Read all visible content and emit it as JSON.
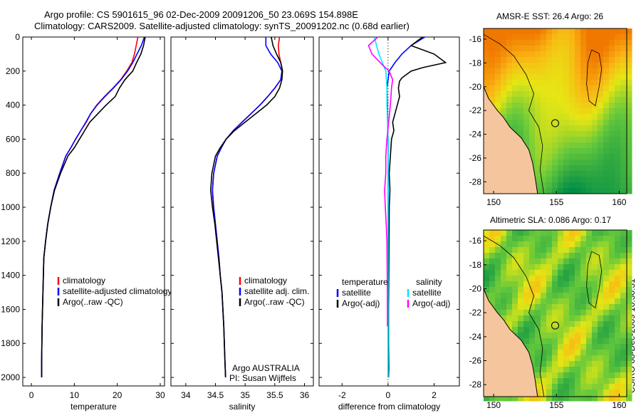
{
  "header": {
    "line1": "Argo profile: CS 5901615_96 02-Dec-2009 20091206_50 23.069S 154.898E",
    "line2": "Climatology: CARS2009. Satellite-adjusted climatology: synTS_20091202.nc (0.68d earlier)"
  },
  "footer_stamp": "CSIRO 08-Dec-2009 10:30:31",
  "colors": {
    "climatology": "#ff0000",
    "satellite": "#0000ff",
    "argo": "#000000",
    "cyan": "#00e5ff",
    "magenta": "#ff00ff"
  },
  "chart_data": [
    {
      "id": "temperature",
      "type": "line",
      "xlabel": "temperature",
      "ylabel": "",
      "xlim": [
        -2,
        31
      ],
      "ylim": [
        2050,
        0
      ],
      "xticks": [
        0,
        10,
        20,
        30
      ],
      "yticks": [
        0,
        200,
        400,
        600,
        800,
        1000,
        1200,
        1400,
        1600,
        1800,
        2000
      ],
      "series": [
        {
          "name": "climatology",
          "color": "#ff0000",
          "x": [
            24.8,
            24.4,
            24,
            23.4,
            22.2,
            20.8,
            19,
            17,
            15.2,
            13.8,
            12.8,
            11.5,
            10.3,
            9.2,
            8,
            6.6,
            5.3,
            4.5,
            3.8,
            3.3,
            2.9,
            2.7,
            2.5,
            2.4,
            2.4
          ],
          "y": [
            0,
            50,
            100,
            150,
            200,
            250,
            300,
            350,
            400,
            450,
            500,
            550,
            600,
            650,
            700,
            800,
            900,
            1000,
            1100,
            1200,
            1300,
            1500,
            1700,
            1900,
            2000
          ]
        },
        {
          "name": "satellite-adjusted climatology",
          "color": "#0000ff",
          "x": [
            26.3,
            25.6,
            24.6,
            23.6,
            22.4,
            20.9,
            19.1,
            17.1,
            15.3,
            13.8,
            12.7,
            11.5,
            10.3,
            9.2,
            8,
            6.6,
            5.3,
            4.5,
            3.8,
            3.3,
            2.9,
            2.7,
            2.5,
            2.4,
            2.4
          ],
          "y": [
            0,
            50,
            100,
            150,
            200,
            250,
            300,
            350,
            400,
            450,
            500,
            550,
            600,
            650,
            700,
            800,
            900,
            1000,
            1100,
            1200,
            1300,
            1500,
            1700,
            1900,
            2000
          ]
        },
        {
          "name": "Argo(..raw -QC)",
          "color": "#000000",
          "x": [
            26.5,
            26.1,
            25.5,
            24.5,
            23.6,
            21.8,
            20.5,
            19.5,
            17.4,
            15.5,
            13.6,
            12.4,
            11.2,
            10,
            8.5,
            6.8,
            5.4,
            4.5,
            3.8,
            3.3,
            2.9,
            2.7,
            2.5,
            2.4,
            2.4
          ],
          "y": [
            0,
            50,
            100,
            150,
            200,
            250,
            300,
            350,
            400,
            450,
            500,
            550,
            600,
            650,
            700,
            800,
            900,
            1000,
            1100,
            1200,
            1300,
            1500,
            1700,
            1900,
            2000
          ]
        }
      ],
      "legend": [
        "climatology",
        "satellite-adjusted climatology",
        "Argo(..raw -QC)"
      ]
    },
    {
      "id": "salinity",
      "type": "line",
      "xlabel": "salinity",
      "ylabel": "",
      "xlim": [
        33.75,
        36.15
      ],
      "ylim": [
        2050,
        0
      ],
      "xticks": [
        34,
        34.5,
        35,
        35.5,
        36
      ],
      "yticks": [
        0,
        200,
        400,
        600,
        800,
        1000,
        1200,
        1400,
        1600,
        1800,
        2000
      ],
      "series": [
        {
          "name": "climatology",
          "color": "#ff0000",
          "x": [
            35.58,
            35.56,
            35.57,
            35.6,
            35.63,
            35.6,
            35.5,
            35.38,
            35.25,
            35.1,
            34.95,
            34.8,
            34.68,
            34.6,
            34.53,
            34.47,
            34.45,
            34.47,
            34.5,
            34.53,
            34.56,
            34.58,
            34.61,
            34.64,
            34.66,
            34.67
          ],
          "y": [
            0,
            50,
            100,
            150,
            200,
            250,
            300,
            350,
            400,
            450,
            500,
            550,
            600,
            650,
            700,
            800,
            900,
            1000,
            1100,
            1200,
            1300,
            1400,
            1500,
            1700,
            1900,
            2000
          ]
        },
        {
          "name": "satellite adj. clim.",
          "color": "#0000ff",
          "x": [
            35.35,
            35.35,
            35.43,
            35.55,
            35.62,
            35.6,
            35.5,
            35.38,
            35.25,
            35.1,
            34.95,
            34.8,
            34.68,
            34.6,
            34.53,
            34.47,
            34.45,
            34.47,
            34.5,
            34.53,
            34.56,
            34.58,
            34.61,
            34.64,
            34.66,
            34.67
          ],
          "y": [
            0,
            50,
            100,
            150,
            200,
            250,
            300,
            350,
            400,
            450,
            500,
            550,
            600,
            650,
            700,
            800,
            900,
            1000,
            1100,
            1200,
            1300,
            1400,
            1500,
            1700,
            1900,
            2000
          ]
        },
        {
          "name": "Argo(..raw -QC)",
          "color": "#000000",
          "x": [
            35.44,
            35.47,
            35.53,
            35.6,
            35.63,
            35.62,
            35.58,
            35.5,
            35.36,
            35.18,
            35.0,
            34.82,
            34.68,
            34.58,
            34.5,
            34.44,
            34.42,
            34.45,
            34.49,
            34.52,
            34.55,
            34.58,
            34.61,
            34.64,
            34.66,
            34.67
          ],
          "y": [
            0,
            50,
            100,
            150,
            200,
            250,
            300,
            350,
            400,
            450,
            500,
            550,
            600,
            650,
            700,
            800,
            900,
            1000,
            1100,
            1200,
            1300,
            1400,
            1500,
            1700,
            1900,
            2000
          ]
        }
      ],
      "legend": [
        "climatology",
        "satellite adj. clim.",
        "Argo(..raw -QC)"
      ],
      "annotation_line1": "Argo AUSTRALIA",
      "annotation_line2": "PI: Susan Wijffels"
    },
    {
      "id": "difference",
      "type": "line",
      "xlabel": "difference from climatology",
      "ylabel": "",
      "xlim": [
        -3,
        3.1
      ],
      "ylim": [
        2050,
        0
      ],
      "xticks": [
        -2,
        0,
        2
      ],
      "yticks": [
        0,
        200,
        400,
        600,
        800,
        1000,
        1200,
        1400,
        1600,
        1800,
        2000
      ],
      "zero_line": true,
      "series": [
        {
          "name": "temperature satellite",
          "color": "#0000ff",
          "x": [
            1.6,
            1.0,
            0.6,
            0.3,
            0.05,
            -0.05,
            -0.03,
            -0.02,
            0.0,
            0.0,
            0.0,
            0.0
          ],
          "y": [
            0,
            50,
            100,
            150,
            200,
            300,
            400,
            500,
            600,
            1000,
            1500,
            2000
          ]
        },
        {
          "name": "temperature Argo(-adj)",
          "color": "#000000",
          "x": [
            1.5,
            1.0,
            2.0,
            2.5,
            1.5,
            1.0,
            0.8,
            0.6,
            0.5,
            0.45,
            0.5,
            0.4,
            0.3,
            0.2,
            0.25,
            0.15,
            0.1,
            0.05,
            0.08,
            0.05,
            0.04,
            0.03,
            0.02,
            0.02,
            0.03,
            0.02
          ],
          "y": [
            0,
            50,
            100,
            150,
            180,
            200,
            220,
            240,
            260,
            300,
            350,
            400,
            450,
            500,
            550,
            600,
            700,
            800,
            900,
            1000,
            1200,
            1400,
            1600,
            1800,
            1950,
            2000
          ]
        },
        {
          "name": "salinity satellite",
          "color": "#00e5ff",
          "x": [
            -0.6,
            -0.4,
            -0.1,
            -0.05,
            -0.05,
            -0.02,
            0.0,
            0.0,
            0.0,
            0.0
          ],
          "y": [
            0,
            100,
            200,
            300,
            400,
            500,
            600,
            1000,
            1500,
            2000
          ]
        },
        {
          "name": "salinity Argo(-adj)",
          "color": "#ff00ff",
          "x": [
            -0.45,
            -0.85,
            -0.7,
            -0.2,
            0.05,
            0.2,
            0.15,
            0.1,
            -0.05,
            -0.1,
            -0.1,
            -0.15,
            -0.12,
            -0.08,
            -0.05,
            -0.03,
            -0.03
          ],
          "y": [
            0,
            50,
            100,
            170,
            200,
            250,
            300,
            400,
            600,
            700,
            800,
            900,
            1000,
            1100,
            1200,
            1500,
            1700
          ]
        }
      ],
      "legend_temperature_header": "temperature",
      "legend_salinity_header": "salinity",
      "legend_temperature": [
        "satellite",
        "Argo(-adj)"
      ],
      "legend_salinity": [
        "satellite",
        "Argo(-adj)"
      ]
    }
  ],
  "maps": [
    {
      "id": "sst",
      "title": "AMSR-E SST: 26.4 Argo: 26",
      "xticks": [
        150,
        155,
        160
      ],
      "yticks": [
        -16,
        -18,
        -20,
        -22,
        -24,
        -26,
        -28
      ],
      "xlim": [
        149.2,
        160.6
      ],
      "ylim": [
        -29,
        -15.1
      ],
      "argo_position": [
        154.9,
        -23.07
      ]
    },
    {
      "id": "sla",
      "title": "Altimetric SLA: 0.086 Argo: 0.17",
      "xticks": [
        150,
        155,
        160
      ],
      "yticks": [
        -16,
        -18,
        -20,
        -22,
        -24,
        -26,
        -28
      ],
      "xlim": [
        149.2,
        160.6
      ],
      "ylim": [
        -29,
        -15.1
      ],
      "argo_position": [
        154.9,
        -23.07
      ]
    }
  ]
}
